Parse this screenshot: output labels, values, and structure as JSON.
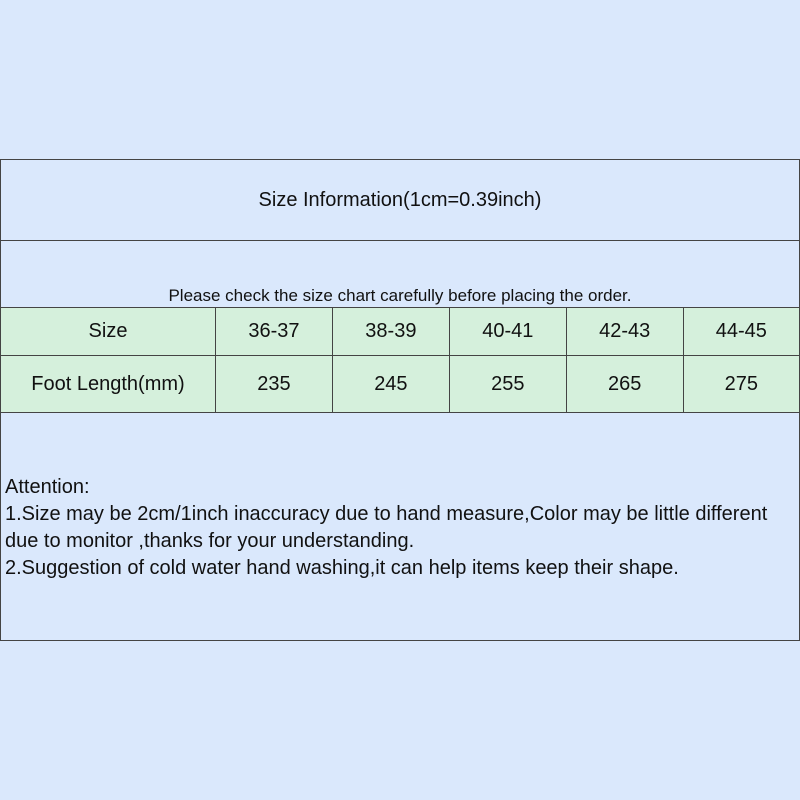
{
  "title": "Size Information(1cm=0.39inch)",
  "note": "Please check the size chart carefully before placing the order.",
  "table": {
    "rows": [
      {
        "label": "Size",
        "values": [
          "36-37",
          "38-39",
          "40-41",
          "42-43",
          "44-45"
        ]
      },
      {
        "label": "Foot Length(mm)",
        "values": [
          "235",
          "245",
          "255",
          "265",
          "275"
        ]
      }
    ]
  },
  "attention": {
    "heading": "Attention:",
    "line1": "1.Size may be 2cm/1inch inaccuracy due to hand measure,Color may be little different due to monitor ,thanks for your understanding.",
    "line2": "2.Suggestion of cold water hand washing,it can help items keep their shape."
  },
  "colors": {
    "background": "#dae8fc",
    "table_fill": "#d5f0dc",
    "border": "#444444"
  }
}
